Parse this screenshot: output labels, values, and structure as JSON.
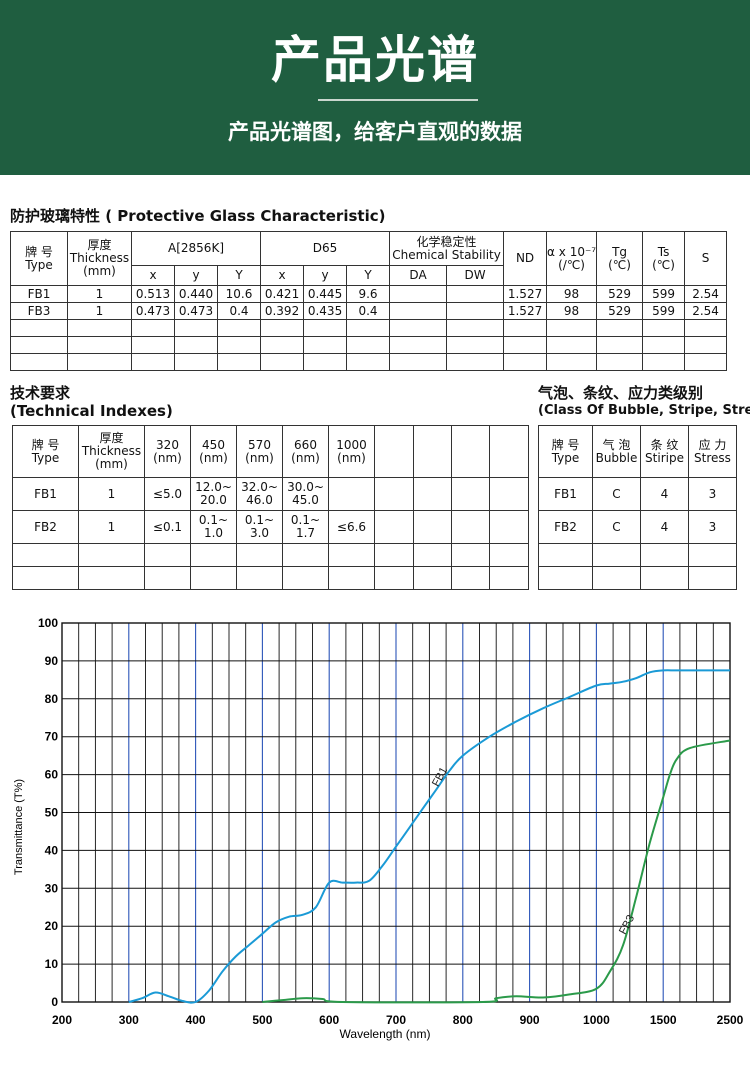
{
  "banner": {
    "title": "产品光谱",
    "subtitle": "产品光谱图，给客户直观的数据"
  },
  "protective": {
    "title": "防护玻璃特性 ( Protective Glass Characteristic)",
    "headers": {
      "type_cn": "牌 号",
      "type_en": "Type",
      "thick_cn": "厚度",
      "thick_en": "Thickness",
      "thick_unit": "(mm)",
      "a2856k": "A[2856K]",
      "d65": "D65",
      "chem_cn": "化学稳定性",
      "chem_en": "Chemical Stability",
      "x": "x",
      "y": "y",
      "Y": "Y",
      "da": "DA",
      "dw": "DW",
      "nd": "ND",
      "alpha": "α x 10⁻⁷",
      "alpha_unit": "(/℃)",
      "tg": "Tg",
      "tg_unit": "(℃)",
      "ts": "Ts",
      "ts_unit": "(℃)",
      "s": "S"
    },
    "rows": [
      {
        "type": "FB1",
        "thickness": "1",
        "ax": "0.513",
        "ay": "0.440",
        "aY": "10.6",
        "dx": "0.421",
        "dy": "0.445",
        "dY": "9.6",
        "da": "",
        "dw": "",
        "nd": "1.527",
        "alpha": "98",
        "tg": "529",
        "ts": "599",
        "s": "2.54"
      },
      {
        "type": "FB3",
        "thickness": "1",
        "ax": "0.473",
        "ay": "0.473",
        "aY": "0.4",
        "dx": "0.392",
        "dy": "0.435",
        "dY": "0.4",
        "da": "",
        "dw": "",
        "nd": "1.527",
        "alpha": "98",
        "tg": "529",
        "ts": "599",
        "s": "2.54"
      }
    ]
  },
  "technical": {
    "title_cn": "技术要求",
    "title_en": "(Technical Indexes)",
    "headers": {
      "type_cn": "牌 号",
      "type_en": "Type",
      "thick_cn": "厚度",
      "thick_en": "Thickness",
      "thick_unit": "(mm)",
      "w320": "320",
      "w450": "450",
      "w570": "570",
      "w660": "660",
      "w1000": "1000",
      "nm": "(nm)"
    },
    "rows": [
      {
        "type": "FB1",
        "thickness": "1",
        "w320": "≤5.0",
        "w450_1": "12.0~",
        "w450_2": "20.0",
        "w570_1": "32.0~",
        "w570_2": "46.0",
        "w660_1": "30.0~",
        "w660_2": "45.0",
        "w1000": ""
      },
      {
        "type": "FB2",
        "thickness": "1",
        "w320": "≤0.1",
        "w450_1": "0.1~",
        "w450_2": "1.0",
        "w570_1": "0.1~",
        "w570_2": "3.0",
        "w660_1": "0.1~",
        "w660_2": "1.7",
        "w1000": "≤6.6"
      }
    ]
  },
  "bubble": {
    "title_cn": "气泡、条纹、应力类级别",
    "title_en": "(Class Of Bubble, Stripe, Stress)",
    "headers": {
      "type_cn": "牌 号",
      "type_en": "Type",
      "bubble_cn": "气 泡",
      "bubble_en": "Bubble",
      "stripe_cn": "条 纹",
      "stripe_en": "Stiripe",
      "stress_cn": "应 力",
      "stress_en": "Stress"
    },
    "rows": [
      {
        "type": "FB1",
        "bubble": "C",
        "stripe": "4",
        "stress": "3"
      },
      {
        "type": "FB2",
        "bubble": "C",
        "stripe": "4",
        "stress": "3"
      }
    ]
  },
  "chart_data": {
    "type": "line",
    "xlabel": "Wavelength (nm)",
    "ylabel": "Transmittance (T%)",
    "x_ticks": [
      "200",
      "300",
      "400",
      "500",
      "600",
      "700",
      "800",
      "900",
      "1000",
      "1500",
      "2500"
    ],
    "y_ticks": [
      "0",
      "10",
      "20",
      "30",
      "40",
      "50",
      "60",
      "70",
      "80",
      "90",
      "100"
    ],
    "ylim": [
      0,
      100
    ],
    "grid": true,
    "colors": {
      "FB1": "#1a9ad6",
      "FB3": "#2b9a4a",
      "major_grid": "#2c55b8",
      "minor_grid": "#111111"
    },
    "series": [
      {
        "name": "FB1",
        "points": [
          [
            300,
            0
          ],
          [
            320,
            1
          ],
          [
            340,
            2.5
          ],
          [
            360,
            1.5
          ],
          [
            380,
            0.3
          ],
          [
            400,
            0
          ],
          [
            420,
            3
          ],
          [
            440,
            8
          ],
          [
            460,
            12
          ],
          [
            480,
            15
          ],
          [
            500,
            18
          ],
          [
            520,
            21
          ],
          [
            540,
            22.5
          ],
          [
            560,
            23
          ],
          [
            580,
            25
          ],
          [
            600,
            31.5
          ],
          [
            620,
            31.5
          ],
          [
            640,
            31.5
          ],
          [
            660,
            32
          ],
          [
            680,
            36
          ],
          [
            700,
            41
          ],
          [
            720,
            46
          ],
          [
            740,
            51
          ],
          [
            760,
            56
          ],
          [
            780,
            61
          ],
          [
            800,
            65
          ],
          [
            840,
            70
          ],
          [
            880,
            74
          ],
          [
            920,
            77.5
          ],
          [
            960,
            80.5
          ],
          [
            1000,
            83.5
          ],
          [
            1100,
            84
          ],
          [
            1200,
            84.5
          ],
          [
            1300,
            85.5
          ],
          [
            1400,
            87
          ],
          [
            1500,
            87.5
          ],
          [
            1700,
            87.5
          ],
          [
            2000,
            87.5
          ],
          [
            2500,
            87.5
          ]
        ]
      },
      {
        "name": "FB3",
        "points": [
          [
            500,
            0
          ],
          [
            530,
            0.5
          ],
          [
            560,
            1
          ],
          [
            590,
            0.8
          ],
          [
            620,
            0
          ],
          [
            830,
            0
          ],
          [
            850,
            1
          ],
          [
            880,
            1.5
          ],
          [
            920,
            1.2
          ],
          [
            960,
            2
          ],
          [
            1000,
            3.5
          ],
          [
            1100,
            8
          ],
          [
            1200,
            15
          ],
          [
            1300,
            28
          ],
          [
            1400,
            42
          ],
          [
            1500,
            54
          ],
          [
            1600,
            60
          ],
          [
            1700,
            64
          ],
          [
            1900,
            67
          ],
          [
            2500,
            69
          ]
        ]
      }
    ],
    "annotations": [
      {
        "text": "FB1",
        "x": 770,
        "y": 59
      },
      {
        "text": "FB3",
        "x": 1250,
        "y": 20
      }
    ]
  }
}
